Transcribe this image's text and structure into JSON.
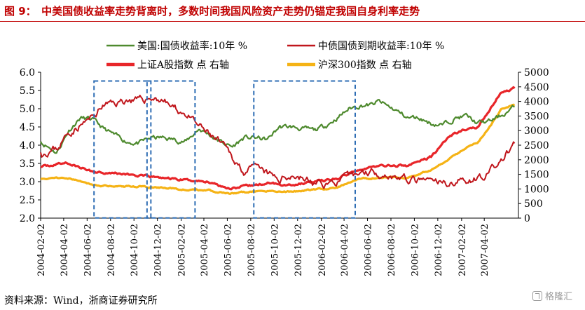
{
  "title": "图 9：　中美国债收益率走势背离时，多数时间我国风险资产走势仍锚定我国自身利率走势",
  "source": "资料来源：Wind，浙商证券研究所",
  "watermark": "格隆汇",
  "colors": {
    "us_yield": "#4e8a2e",
    "cn_yield": "#c0161c",
    "sse": "#e8262a",
    "csi300": "#f5b316",
    "box": "#2e6db4",
    "title": "#c00000"
  },
  "chart_data": {
    "type": "line",
    "left_axis": {
      "min": 2.0,
      "max": 6.0,
      "ticks": [
        "2.0",
        "2.5",
        "3.0",
        "3.5",
        "4.0",
        "4.5",
        "5.0",
        "5.5",
        "6.0"
      ]
    },
    "right_axis": {
      "min": 0,
      "max": 5000,
      "ticks": [
        "0",
        "500",
        "1000",
        "1500",
        "2000",
        "2500",
        "3000",
        "3500",
        "4000",
        "4500",
        "5000"
      ]
    },
    "x_range": [
      "2004-02-02",
      "2007-06-30"
    ],
    "x_ticks": [
      "2004-02-02",
      "2004-04-02",
      "2004-06-02",
      "2004-08-02",
      "2004-10-02",
      "2004-12-02",
      "2005-02-02",
      "2005-04-02",
      "2005-06-02",
      "2005-08-02",
      "2005-10-02",
      "2005-12-02",
      "2006-02-02",
      "2006-04-02",
      "2006-06-02",
      "2006-08-02",
      "2006-10-02",
      "2006-12-02",
      "2007-02-02",
      "2007-04-02"
    ],
    "legend": [
      {
        "key": "us_yield",
        "label": "美国:国债收益率:10年 %"
      },
      {
        "key": "cn_yield",
        "label": "中债国债到期收益率:10年 %"
      },
      {
        "key": "sse",
        "label": "上证A股指数 点 右轴"
      },
      {
        "key": "csi300",
        "label": "沪深300指数 点 右轴"
      }
    ],
    "series": [
      {
        "key": "us_yield",
        "axis": "left",
        "x": [
          "2004-02-02",
          "2004-03-15",
          "2004-04-15",
          "2004-05-15",
          "2004-06-15",
          "2004-07-15",
          "2004-08-15",
          "2004-09-15",
          "2004-10-15",
          "2004-11-15",
          "2004-12-15",
          "2005-01-15",
          "2005-02-15",
          "2005-03-20",
          "2005-04-15",
          "2005-05-15",
          "2005-06-15",
          "2005-07-15",
          "2005-08-15",
          "2005-09-15",
          "2005-10-15",
          "2005-11-15",
          "2005-12-15",
          "2006-01-15",
          "2006-02-15",
          "2006-03-15",
          "2006-04-15",
          "2006-05-15",
          "2006-06-15",
          "2006-07-01",
          "2006-08-15",
          "2006-09-15",
          "2006-10-15",
          "2006-11-15",
          "2006-12-15",
          "2007-01-15",
          "2007-02-15",
          "2007-03-15",
          "2007-04-15",
          "2007-05-15",
          "2007-06-20"
        ],
        "values": [
          4.1,
          3.8,
          4.4,
          4.75,
          4.7,
          4.45,
          4.25,
          4.1,
          4.05,
          4.2,
          4.2,
          4.15,
          4.1,
          4.45,
          4.3,
          4.1,
          3.95,
          4.2,
          4.2,
          4.15,
          4.5,
          4.5,
          4.45,
          4.4,
          4.55,
          4.75,
          5.0,
          5.1,
          5.1,
          5.2,
          4.95,
          4.75,
          4.75,
          4.6,
          4.55,
          4.75,
          4.8,
          4.6,
          4.65,
          4.8,
          5.05
        ]
      },
      {
        "key": "cn_yield",
        "axis": "left",
        "x": [
          "2004-02-02",
          "2004-03-15",
          "2004-04-15",
          "2004-05-15",
          "2004-06-15",
          "2004-07-15",
          "2004-08-15",
          "2004-09-15",
          "2004-10-15",
          "2004-11-15",
          "2004-12-15",
          "2005-01-15",
          "2005-02-15",
          "2005-03-15",
          "2005-04-15",
          "2005-05-15",
          "2005-06-15",
          "2005-07-15",
          "2005-08-15",
          "2005-09-15",
          "2005-10-15",
          "2005-11-15",
          "2005-12-15",
          "2006-01-15",
          "2006-02-15",
          "2006-03-15",
          "2006-04-15",
          "2006-05-15",
          "2006-06-15",
          "2006-07-15",
          "2006-08-15",
          "2006-09-15",
          "2006-10-15",
          "2006-11-15",
          "2006-12-15",
          "2007-01-15",
          "2007-02-15",
          "2007-03-15",
          "2007-04-15",
          "2007-05-15",
          "2007-06-20"
        ],
        "values": [
          3.8,
          3.9,
          4.35,
          4.55,
          4.75,
          5.1,
          5.15,
          5.25,
          5.2,
          5.3,
          5.25,
          5.0,
          4.85,
          4.55,
          4.3,
          4.05,
          3.65,
          3.3,
          3.35,
          3.2,
          3.05,
          3.2,
          3.1,
          2.95,
          2.95,
          3.0,
          3.1,
          3.25,
          3.3,
          3.2,
          3.15,
          3.05,
          3.0,
          3.0,
          2.95,
          3.0,
          3.05,
          3.1,
          3.25,
          3.55,
          4.05
        ]
      },
      {
        "key": "sse",
        "axis": "right",
        "x": [
          "2004-02-02",
          "2004-04-07",
          "2004-06-15",
          "2004-08-15",
          "2004-10-15",
          "2004-12-15",
          "2005-02-15",
          "2005-04-15",
          "2005-06-06",
          "2005-07-15",
          "2005-09-15",
          "2005-11-15",
          "2006-01-15",
          "2006-03-15",
          "2006-05-15",
          "2006-07-15",
          "2006-09-15",
          "2006-11-15",
          "2006-12-31",
          "2007-02-15",
          "2007-03-15",
          "2007-04-15",
          "2007-05-15",
          "2007-06-20"
        ],
        "values": [
          1750,
          1900,
          1600,
          1550,
          1450,
          1380,
          1300,
          1250,
          1030,
          1070,
          1200,
          1140,
          1250,
          1350,
          1700,
          1800,
          1800,
          2100,
          2800,
          3050,
          3100,
          3700,
          4300,
          4450
        ]
      },
      {
        "key": "csi300",
        "axis": "right",
        "x": [
          "2004-02-02",
          "2004-04-07",
          "2004-06-15",
          "2004-08-15",
          "2004-10-15",
          "2004-12-15",
          "2005-02-15",
          "2005-04-15",
          "2005-06-06",
          "2005-07-15",
          "2005-09-15",
          "2005-11-15",
          "2006-01-15",
          "2006-03-15",
          "2006-05-15",
          "2006-07-15",
          "2006-09-15",
          "2006-11-15",
          "2006-12-31",
          "2007-02-15",
          "2007-03-15",
          "2007-04-15",
          "2007-05-15",
          "2007-06-20"
        ],
        "values": [
          1350,
          1400,
          1150,
          1100,
          1080,
          1040,
          980,
          950,
          830,
          880,
          940,
          900,
          980,
          1050,
          1350,
          1400,
          1350,
          1650,
          2000,
          2450,
          2600,
          3100,
          3700,
          3900
        ]
      }
    ],
    "boxes": [
      {
        "x0": "2004-06-20",
        "x1": "2004-11-15",
        "y0_right": 5,
        "y1_right": 4700
      },
      {
        "x0": "2004-11-05",
        "x1": "2005-03-10",
        "y0_right": 5,
        "y1_right": 4700
      },
      {
        "x0": "2005-08-10",
        "x1": "2006-05-01",
        "y0_right": 5,
        "y1_right": 4700
      }
    ]
  }
}
